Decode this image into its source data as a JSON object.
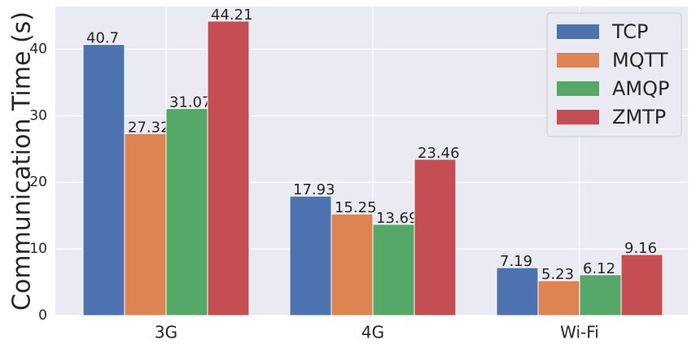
{
  "chart_data": {
    "type": "bar",
    "y_label": "Communication Time (s)",
    "categories": [
      "3G",
      "4G",
      "Wi-Fi"
    ],
    "series": [
      {
        "name": "TCP",
        "color": "#4c72b0",
        "values": [
          40.7,
          17.93,
          7.19
        ]
      },
      {
        "name": "MQTT",
        "color": "#dd8452",
        "values": [
          27.32,
          15.25,
          5.23
        ]
      },
      {
        "name": "AMQP",
        "color": "#55a868",
        "values": [
          31.07,
          13.69,
          6.12
        ]
      },
      {
        "name": "ZMTP",
        "color": "#c44e52",
        "values": [
          44.21,
          23.46,
          9.16
        ]
      }
    ],
    "ylim": [
      0,
      46.4
    ],
    "yticks": [
      0,
      10,
      20,
      30,
      40
    ],
    "grid": true,
    "legend": "upper right"
  }
}
